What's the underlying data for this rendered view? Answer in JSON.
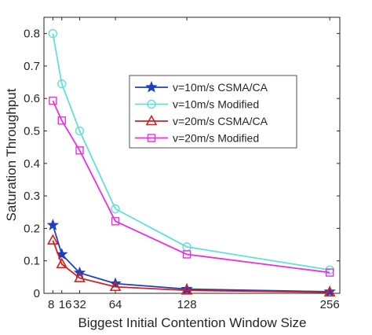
{
  "chart_data": {
    "type": "line",
    "title": "",
    "xlabel": "Biggest Initial Contention Window Size",
    "ylabel": "Saturation Throughput",
    "xlim": [
      0,
      265
    ],
    "ylim": [
      0,
      0.85
    ],
    "x_ticks": [
      8,
      16,
      32,
      64,
      128,
      256
    ],
    "x_tick_labels": [
      "8",
      "16",
      "32",
      "64",
      "128",
      "256"
    ],
    "y_ticks": [
      0,
      0.1,
      0.2,
      0.3,
      0.4,
      0.5,
      0.6,
      0.7,
      0.8
    ],
    "y_tick_labels": [
      "0",
      "0.1",
      "0.2",
      "0.3",
      "0.4",
      "0.5",
      "0.6",
      "0.7",
      "0.8"
    ],
    "grid": false,
    "legend_position": "center-right",
    "x": [
      8,
      16,
      32,
      64,
      128,
      256
    ],
    "series": [
      {
        "name": "v=10m/s CSMA/CA",
        "color": "#1f3fbf",
        "marker": "star",
        "values": [
          0.21,
          0.12,
          0.063,
          0.03,
          0.013,
          0.005
        ]
      },
      {
        "name": "v=10m/s Modified",
        "color": "#5fe0d8",
        "marker": "circle",
        "values": [
          0.8,
          0.645,
          0.5,
          0.26,
          0.143,
          0.072
        ]
      },
      {
        "name": "v=20m/s CSMA/CA",
        "color": "#d42020",
        "marker": "triangle",
        "values": [
          0.163,
          0.09,
          0.047,
          0.02,
          0.009,
          0.003
        ]
      },
      {
        "name": "v=20m/s Modified",
        "color": "#e830e0",
        "marker": "square",
        "values": [
          0.593,
          0.532,
          0.44,
          0.222,
          0.12,
          0.064
        ]
      }
    ]
  }
}
